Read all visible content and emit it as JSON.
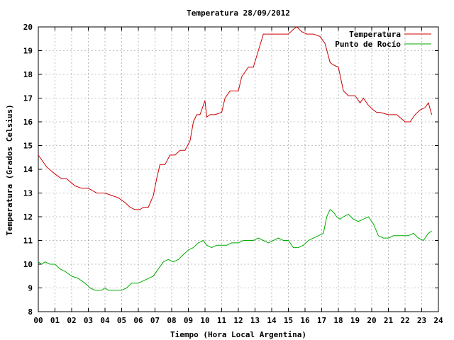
{
  "chart_data": {
    "type": "line",
    "title": "Temperatura 28/09/2012",
    "xlabel": "Tiempo (Hora Local Argentina)",
    "ylabel": "Temperatura (Grados Celsius)",
    "xlim": [
      0,
      24
    ],
    "ylim": [
      8,
      20
    ],
    "x_ticks": [
      "00",
      "01",
      "02",
      "03",
      "04",
      "05",
      "06",
      "07",
      "08",
      "09",
      "10",
      "11",
      "12",
      "13",
      "14",
      "15",
      "16",
      "17",
      "18",
      "19",
      "20",
      "21",
      "22",
      "23",
      "24"
    ],
    "y_ticks": [
      "8",
      "9",
      "10",
      "11",
      "12",
      "13",
      "14",
      "15",
      "16",
      "17",
      "18",
      "19",
      "20"
    ],
    "grid": true,
    "legend": "top-right",
    "colors": {
      "temperatura": "#cc0000",
      "rocio": "#00aa00"
    },
    "series": [
      {
        "name": "Temperatura",
        "x": [
          0,
          0.3,
          0.5,
          1.0,
          1.4,
          1.7,
          2.2,
          2.6,
          3.0,
          3.5,
          4.0,
          4.4,
          4.8,
          5.2,
          5.5,
          5.8,
          6.1,
          6.3,
          6.6,
          6.9,
          7.1,
          7.3,
          7.6,
          7.9,
          8.2,
          8.5,
          8.8,
          9.1,
          9.3,
          9.5,
          9.7,
          10.0,
          10.1,
          10.3,
          10.6,
          11.0,
          11.2,
          11.5,
          11.7,
          12.0,
          12.2,
          12.6,
          12.9,
          13.2,
          13.5,
          14.0,
          14.5,
          15.0,
          15.3,
          15.5,
          15.8,
          16.1,
          16.5,
          16.9,
          17.2,
          17.5,
          17.7,
          18.0,
          18.3,
          18.6,
          19.0,
          19.3,
          19.5,
          19.8,
          20.1,
          20.3,
          20.5,
          21.0,
          21.5,
          22.0,
          22.3,
          22.6,
          22.9,
          23.2,
          23.4,
          23.6
        ],
        "values": [
          14.6,
          14.3,
          14.1,
          13.8,
          13.6,
          13.6,
          13.3,
          13.2,
          13.2,
          13.0,
          13.0,
          12.9,
          12.8,
          12.6,
          12.4,
          12.3,
          12.3,
          12.4,
          12.4,
          12.9,
          13.6,
          14.2,
          14.2,
          14.6,
          14.6,
          14.8,
          14.8,
          15.2,
          16.0,
          16.3,
          16.3,
          16.9,
          16.2,
          16.3,
          16.3,
          16.4,
          17.0,
          17.3,
          17.3,
          17.3,
          17.9,
          18.3,
          18.3,
          19.0,
          19.7,
          19.7,
          19.7,
          19.7,
          19.9,
          20.0,
          19.8,
          19.7,
          19.7,
          19.6,
          19.3,
          18.5,
          18.4,
          18.3,
          17.3,
          17.1,
          17.1,
          16.8,
          17.0,
          16.7,
          16.5,
          16.4,
          16.4,
          16.3,
          16.3,
          16.0,
          16.0,
          16.3,
          16.5,
          16.6,
          16.8,
          16.3
        ]
      },
      {
        "name": "Punto de Rocío",
        "x": [
          0,
          0.2,
          0.4,
          0.7,
          1.0,
          1.3,
          1.6,
          2.0,
          2.4,
          2.8,
          3.1,
          3.4,
          3.8,
          4.0,
          4.2,
          4.5,
          4.8,
          5.0,
          5.3,
          5.6,
          6.0,
          6.3,
          6.6,
          6.9,
          7.2,
          7.5,
          7.8,
          8.1,
          8.4,
          8.7,
          9.0,
          9.3,
          9.6,
          9.9,
          10.1,
          10.4,
          10.7,
          11.0,
          11.3,
          11.6,
          12.0,
          12.3,
          12.6,
          12.9,
          13.2,
          13.5,
          13.8,
          14.1,
          14.4,
          14.7,
          15.0,
          15.3,
          15.6,
          15.9,
          16.2,
          16.5,
          16.8,
          17.1,
          17.3,
          17.5,
          17.7,
          17.9,
          18.1,
          18.3,
          18.6,
          18.9,
          19.2,
          19.5,
          19.8,
          20.1,
          20.4,
          20.7,
          21.0,
          21.3,
          21.6,
          21.9,
          22.2,
          22.5,
          22.8,
          23.1,
          23.4,
          23.6
        ],
        "values": [
          10.1,
          10.0,
          10.1,
          10.0,
          10.0,
          9.8,
          9.7,
          9.5,
          9.4,
          9.2,
          9.0,
          8.9,
          8.9,
          9.0,
          8.9,
          8.9,
          8.9,
          8.9,
          9.0,
          9.2,
          9.2,
          9.3,
          9.4,
          9.5,
          9.8,
          10.1,
          10.2,
          10.1,
          10.2,
          10.4,
          10.6,
          10.7,
          10.9,
          11.0,
          10.8,
          10.7,
          10.8,
          10.8,
          10.8,
          10.9,
          10.9,
          11.0,
          11.0,
          11.0,
          11.1,
          11.0,
          10.9,
          11.0,
          11.1,
          11.0,
          11.0,
          10.7,
          10.7,
          10.8,
          11.0,
          11.1,
          11.2,
          11.3,
          12.0,
          12.3,
          12.2,
          12.0,
          11.9,
          12.0,
          12.1,
          11.9,
          11.8,
          11.9,
          12.0,
          11.7,
          11.2,
          11.1,
          11.1,
          11.2,
          11.2,
          11.2,
          11.2,
          11.3,
          11.1,
          11.0,
          11.3,
          11.4
        ]
      }
    ]
  }
}
